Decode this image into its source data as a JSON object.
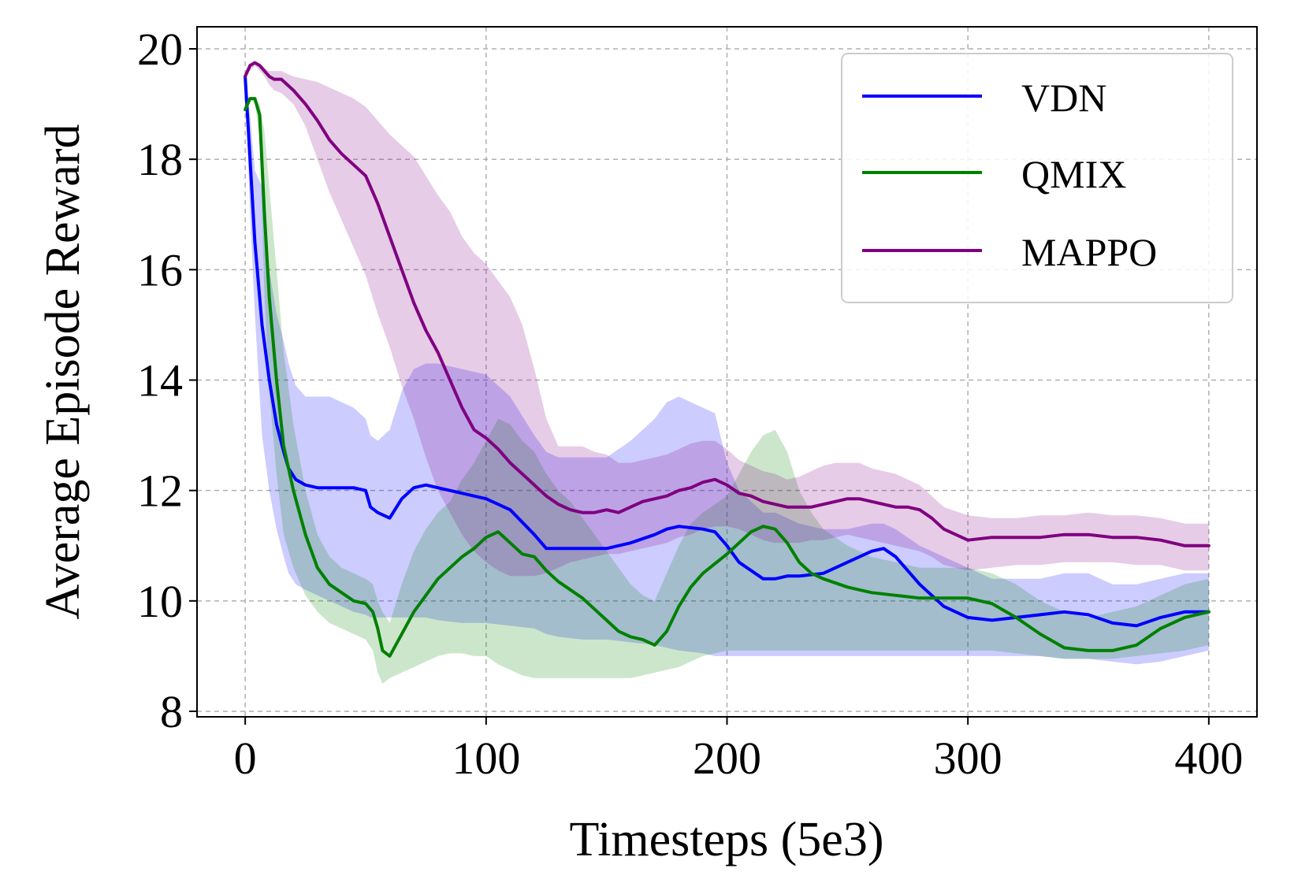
{
  "chart_data": {
    "type": "line",
    "title": "",
    "xlabel": "Timesteps (5e3)",
    "ylabel": "Average Episode Reward",
    "xlim": [
      -20,
      420
    ],
    "ylim": [
      7.9,
      20.4
    ],
    "xticks": [
      0,
      100,
      200,
      300,
      400
    ],
    "yticks": [
      8,
      10,
      12,
      14,
      16,
      18,
      20
    ],
    "grid": true,
    "legend_position": "top-right",
    "series": [
      {
        "name": "VDN",
        "color": "#0000ff",
        "x": [
          0,
          2,
          4,
          7,
          10,
          13,
          16,
          18,
          21,
          25,
          30,
          35,
          40,
          45,
          50,
          52,
          55,
          60,
          65,
          70,
          75,
          80,
          90,
          100,
          110,
          120,
          125,
          130,
          140,
          150,
          160,
          170,
          175,
          180,
          190,
          195,
          200,
          205,
          210,
          215,
          220,
          225,
          230,
          240,
          250,
          260,
          265,
          270,
          280,
          290,
          300,
          310,
          320,
          330,
          340,
          350,
          360,
          370,
          380,
          390,
          400
        ],
        "values": [
          19.5,
          18.0,
          16.5,
          15.0,
          14.0,
          13.2,
          12.7,
          12.4,
          12.2,
          12.1,
          12.05,
          12.05,
          12.05,
          12.05,
          12.0,
          11.7,
          11.6,
          11.5,
          11.85,
          12.05,
          12.1,
          12.05,
          11.95,
          11.85,
          11.65,
          11.2,
          10.95,
          10.95,
          10.95,
          10.95,
          11.05,
          11.2,
          11.3,
          11.35,
          11.3,
          11.25,
          11.0,
          10.7,
          10.55,
          10.4,
          10.4,
          10.45,
          10.45,
          10.5,
          10.7,
          10.9,
          10.95,
          10.8,
          10.3,
          9.9,
          9.7,
          9.65,
          9.7,
          9.75,
          9.8,
          9.75,
          9.6,
          9.55,
          9.7,
          9.8,
          9.8
        ],
        "upper": [
          19.5,
          18.8,
          17.8,
          17.5,
          16.0,
          15.2,
          14.7,
          14.3,
          13.9,
          13.7,
          13.7,
          13.7,
          13.6,
          13.5,
          13.3,
          13.0,
          12.9,
          13.1,
          13.8,
          14.2,
          14.3,
          14.3,
          14.2,
          14.1,
          13.7,
          13.0,
          12.7,
          12.6,
          12.6,
          12.6,
          12.9,
          13.3,
          13.6,
          13.7,
          13.5,
          13.4,
          12.5,
          12.0,
          11.8,
          11.6,
          11.6,
          11.5,
          11.4,
          11.3,
          11.3,
          11.4,
          11.4,
          11.3,
          11.0,
          10.8,
          10.6,
          10.4,
          10.4,
          10.4,
          10.5,
          10.5,
          10.3,
          10.3,
          10.4,
          10.5,
          10.5
        ],
        "lower": [
          19.5,
          17.0,
          15.2,
          13.0,
          12.0,
          11.3,
          10.8,
          10.5,
          10.3,
          10.2,
          10.1,
          10.0,
          9.9,
          9.8,
          9.75,
          9.7,
          9.7,
          9.7,
          9.7,
          9.7,
          9.7,
          9.65,
          9.6,
          9.6,
          9.55,
          9.5,
          9.4,
          9.35,
          9.3,
          9.3,
          9.25,
          9.2,
          9.15,
          9.1,
          9.05,
          9.0,
          9.0,
          9.0,
          9.0,
          9.0,
          9.0,
          9.0,
          9.0,
          9.0,
          9.0,
          9.0,
          9.0,
          9.0,
          9.0,
          9.0,
          9.0,
          9.0,
          9.0,
          9.0,
          8.95,
          8.95,
          8.9,
          8.85,
          8.9,
          9.0,
          9.1
        ]
      },
      {
        "name": "QMIX",
        "color": "#008000",
        "x": [
          0,
          2,
          4,
          6,
          8,
          10,
          13,
          16,
          20,
          25,
          30,
          35,
          40,
          45,
          50,
          53,
          55,
          57,
          60,
          65,
          70,
          75,
          80,
          85,
          90,
          95,
          100,
          105,
          110,
          115,
          120,
          125,
          130,
          135,
          140,
          145,
          150,
          155,
          160,
          165,
          170,
          175,
          180,
          185,
          190,
          200,
          205,
          210,
          215,
          220,
          225,
          230,
          235,
          240,
          250,
          260,
          270,
          280,
          290,
          300,
          310,
          320,
          330,
          340,
          350,
          360,
          370,
          380,
          390,
          400
        ],
        "values": [
          18.9,
          19.1,
          19.1,
          18.8,
          17.0,
          15.5,
          14.0,
          12.8,
          12.0,
          11.2,
          10.6,
          10.3,
          10.15,
          10.0,
          9.95,
          9.8,
          9.5,
          9.1,
          9.0,
          9.4,
          9.8,
          10.1,
          10.4,
          10.6,
          10.8,
          10.95,
          11.15,
          11.25,
          11.05,
          10.85,
          10.8,
          10.55,
          10.35,
          10.2,
          10.05,
          9.85,
          9.65,
          9.45,
          9.35,
          9.3,
          9.2,
          9.45,
          9.9,
          10.25,
          10.5,
          10.85,
          11.05,
          11.25,
          11.35,
          11.3,
          11.05,
          10.7,
          10.5,
          10.4,
          10.25,
          10.15,
          10.1,
          10.05,
          10.05,
          10.05,
          9.95,
          9.7,
          9.4,
          9.15,
          9.1,
          9.1,
          9.2,
          9.5,
          9.7,
          9.8
        ],
        "upper": [
          18.9,
          19.1,
          19.1,
          19.0,
          18.5,
          17.5,
          16.0,
          14.5,
          13.2,
          12.0,
          11.2,
          10.8,
          10.6,
          10.5,
          10.4,
          10.3,
          10.0,
          9.8,
          9.6,
          10.3,
          10.9,
          11.3,
          11.6,
          11.8,
          12.2,
          12.5,
          12.9,
          13.3,
          13.2,
          12.9,
          12.7,
          12.3,
          12.0,
          11.8,
          11.5,
          11.2,
          10.9,
          10.6,
          10.3,
          10.1,
          10.0,
          10.5,
          11.0,
          11.4,
          11.6,
          11.9,
          12.3,
          12.7,
          13.0,
          13.1,
          12.7,
          12.0,
          11.6,
          11.3,
          11.0,
          10.8,
          10.7,
          10.6,
          10.6,
          10.6,
          10.5,
          10.3,
          10.0,
          9.8,
          9.7,
          9.8,
          9.9,
          10.1,
          10.3,
          10.4
        ],
        "lower": [
          18.9,
          19.1,
          19.0,
          18.4,
          15.5,
          13.8,
          12.3,
          11.2,
          10.6,
          10.1,
          9.8,
          9.6,
          9.5,
          9.4,
          9.3,
          9.1,
          8.7,
          8.5,
          8.6,
          8.7,
          8.8,
          8.9,
          9.0,
          9.05,
          9.05,
          9.0,
          9.0,
          8.85,
          8.75,
          8.65,
          8.6,
          8.6,
          8.6,
          8.6,
          8.6,
          8.6,
          8.6,
          8.6,
          8.6,
          8.65,
          8.7,
          8.75,
          8.8,
          8.9,
          9.0,
          9.1,
          9.1,
          9.1,
          9.1,
          9.1,
          9.1,
          9.1,
          9.1,
          9.1,
          9.1,
          9.1,
          9.1,
          9.1,
          9.1,
          9.1,
          9.1,
          9.05,
          9.0,
          8.95,
          8.95,
          8.95,
          9.0,
          9.05,
          9.1,
          9.2
        ]
      },
      {
        "name": "MAPPO",
        "color": "#800080",
        "x": [
          0,
          2,
          4,
          6,
          8,
          10,
          12,
          15,
          20,
          25,
          30,
          35,
          40,
          45,
          50,
          55,
          60,
          65,
          70,
          75,
          80,
          85,
          90,
          95,
          100,
          105,
          110,
          115,
          120,
          125,
          130,
          135,
          140,
          145,
          150,
          155,
          160,
          165,
          170,
          175,
          180,
          185,
          190,
          195,
          200,
          205,
          210,
          215,
          220,
          225,
          230,
          235,
          240,
          245,
          250,
          255,
          260,
          265,
          270,
          275,
          280,
          285,
          290,
          300,
          310,
          320,
          330,
          340,
          350,
          360,
          370,
          380,
          390,
          400
        ],
        "values": [
          19.5,
          19.7,
          19.75,
          19.7,
          19.6,
          19.5,
          19.45,
          19.45,
          19.25,
          19.0,
          18.7,
          18.35,
          18.1,
          17.9,
          17.7,
          17.2,
          16.6,
          16.0,
          15.4,
          14.9,
          14.5,
          14.0,
          13.5,
          13.1,
          12.95,
          12.75,
          12.5,
          12.3,
          12.1,
          11.9,
          11.75,
          11.65,
          11.6,
          11.6,
          11.65,
          11.6,
          11.7,
          11.8,
          11.85,
          11.9,
          12.0,
          12.05,
          12.15,
          12.2,
          12.1,
          11.95,
          11.9,
          11.8,
          11.75,
          11.7,
          11.7,
          11.7,
          11.75,
          11.8,
          11.85,
          11.85,
          11.8,
          11.75,
          11.7,
          11.7,
          11.65,
          11.5,
          11.3,
          11.1,
          11.15,
          11.15,
          11.15,
          11.2,
          11.2,
          11.15,
          11.15,
          11.1,
          11.0,
          11.0
        ],
        "upper": [
          19.5,
          19.7,
          19.75,
          19.7,
          19.65,
          19.6,
          19.6,
          19.6,
          19.5,
          19.45,
          19.4,
          19.3,
          19.2,
          19.1,
          18.95,
          18.7,
          18.45,
          18.25,
          18.05,
          17.7,
          17.35,
          17.05,
          16.6,
          16.3,
          16.1,
          15.8,
          15.5,
          15.0,
          14.2,
          13.3,
          12.8,
          12.8,
          12.8,
          12.7,
          12.65,
          12.5,
          12.5,
          12.55,
          12.6,
          12.65,
          12.75,
          12.85,
          12.9,
          12.9,
          12.75,
          12.55,
          12.45,
          12.35,
          12.3,
          12.2,
          12.25,
          12.35,
          12.45,
          12.5,
          12.5,
          12.5,
          12.4,
          12.35,
          12.3,
          12.2,
          12.1,
          11.9,
          11.7,
          11.55,
          11.5,
          11.5,
          11.55,
          11.55,
          11.6,
          11.55,
          11.55,
          11.5,
          11.4,
          11.4
        ],
        "lower": [
          19.5,
          19.6,
          19.7,
          19.6,
          19.5,
          19.35,
          19.25,
          19.2,
          19.0,
          18.6,
          18.0,
          17.4,
          16.9,
          16.4,
          15.9,
          15.2,
          14.6,
          13.9,
          13.3,
          12.6,
          12.0,
          11.6,
          11.2,
          10.9,
          10.7,
          10.55,
          10.45,
          10.45,
          10.45,
          10.5,
          10.6,
          10.7,
          10.75,
          10.8,
          10.85,
          10.85,
          10.9,
          10.95,
          11.0,
          11.05,
          11.15,
          11.2,
          11.3,
          11.35,
          11.35,
          11.3,
          11.2,
          11.1,
          11.05,
          11.05,
          11.05,
          11.1,
          11.1,
          11.15,
          11.2,
          11.15,
          11.1,
          11.05,
          11.0,
          10.95,
          10.9,
          10.8,
          10.65,
          10.55,
          10.6,
          10.65,
          10.65,
          10.7,
          10.7,
          10.7,
          10.65,
          10.65,
          10.55,
          10.55
        ]
      }
    ]
  }
}
